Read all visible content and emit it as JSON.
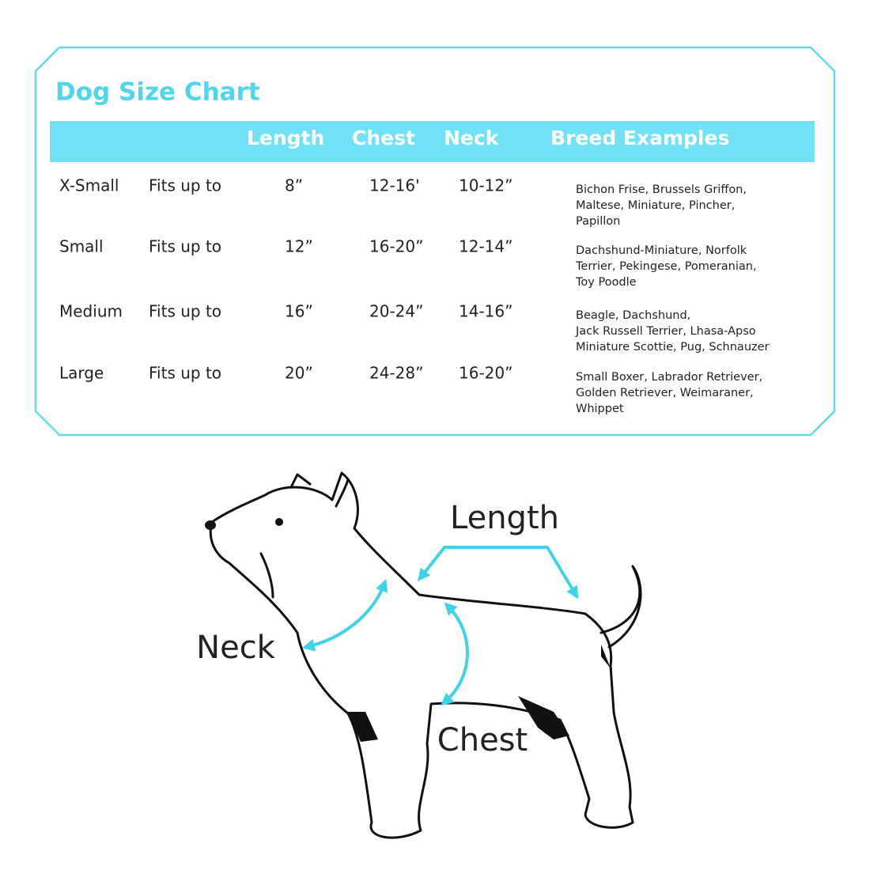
{
  "header": {
    "title": "Dog Size Chart"
  },
  "table": {
    "columns": [
      "Length",
      "Chest",
      "Neck",
      "Breed Examples"
    ],
    "rows": [
      {
        "size": "X-Small",
        "fit": "Fits up to",
        "length": "8”",
        "chest": "12-16'",
        "neck": "10-12”",
        "breeds": [
          "Bichon Frise, Brussels Griffon,",
          "Maltese, Miniature, Pincher,",
          "Papillon"
        ]
      },
      {
        "size": "Small",
        "fit": "Fits up to",
        "length": "12”",
        "chest": "16-20”",
        "neck": "12-14”",
        "breeds": [
          "Dachshund-Miniature, Norfolk",
          "Terrier, Pekingese, Pomeranian,",
          "Toy Poodle"
        ]
      },
      {
        "size": "Medium",
        "fit": "Fits up to",
        "length": "16”",
        "chest": "20-24”",
        "neck": "14-16”",
        "breeds": [
          "Beagle, Dachshund,",
          "Jack Russell Terrier, Lhasa-Apso",
          "Miniature Scottie, Pug, Schnauzer"
        ]
      },
      {
        "size": "Large",
        "fit": "Fits up to",
        "length": "20”",
        "chest": "24-28”",
        "neck": "16-20”",
        "breeds": [
          "Small Boxer, Labrador Retriever,",
          "Golden Retriever, Weimaraner,",
          "Whippet"
        ]
      }
    ]
  },
  "diagram": {
    "labels": {
      "length": "Length",
      "neck": "Neck",
      "chest": "Chest"
    }
  }
}
